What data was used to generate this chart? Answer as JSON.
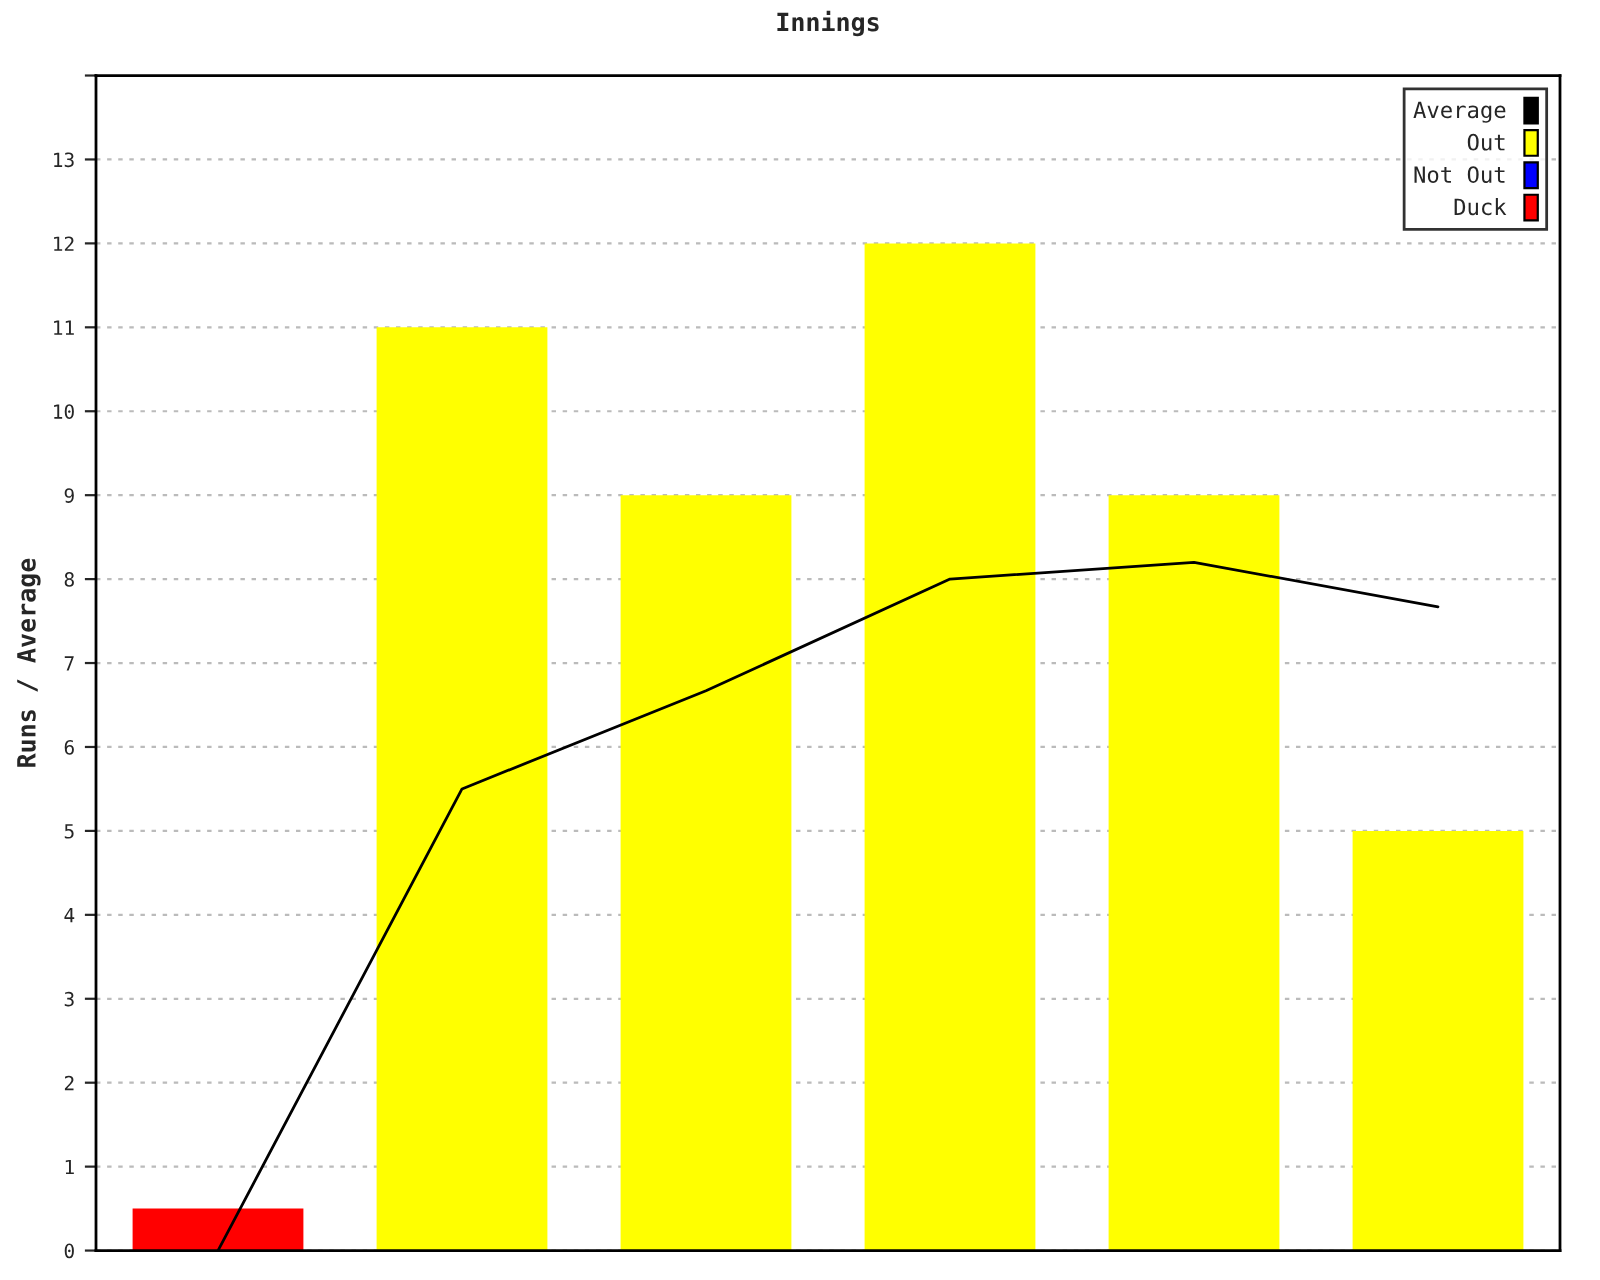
{
  "chart_data": {
    "type": "bar",
    "title": "Innings",
    "ylabel": "Runs / Average",
    "categories": [
      null,
      null,
      null,
      null,
      null,
      null
    ],
    "stacked": true,
    "series": [
      {
        "name": "Average",
        "type": "line",
        "color": "#000000",
        "values": [
          0,
          5.5,
          6.67,
          8,
          8.2,
          7.67
        ]
      },
      {
        "name": "Out",
        "color": "#ffff00",
        "values": [
          null,
          11,
          9,
          12,
          9,
          5
        ]
      },
      {
        "name": "Not Out",
        "color": "#0000ff",
        "values": [
          null,
          null,
          null,
          null,
          null,
          null
        ]
      },
      {
        "name": "Duck",
        "color": "#ff0000",
        "values": [
          0.5,
          null,
          null,
          null,
          null,
          null
        ]
      }
    ],
    "ylim": [
      0,
      14
    ],
    "yticks": [
      0,
      1,
      2,
      3,
      4,
      5,
      6,
      7,
      8,
      9,
      10,
      11,
      12,
      13,
      {
        "value": 14,
        "label": null
      }
    ],
    "grid": "y",
    "legend": "top right",
    "marker": "none",
    "line_style": "solid"
  }
}
